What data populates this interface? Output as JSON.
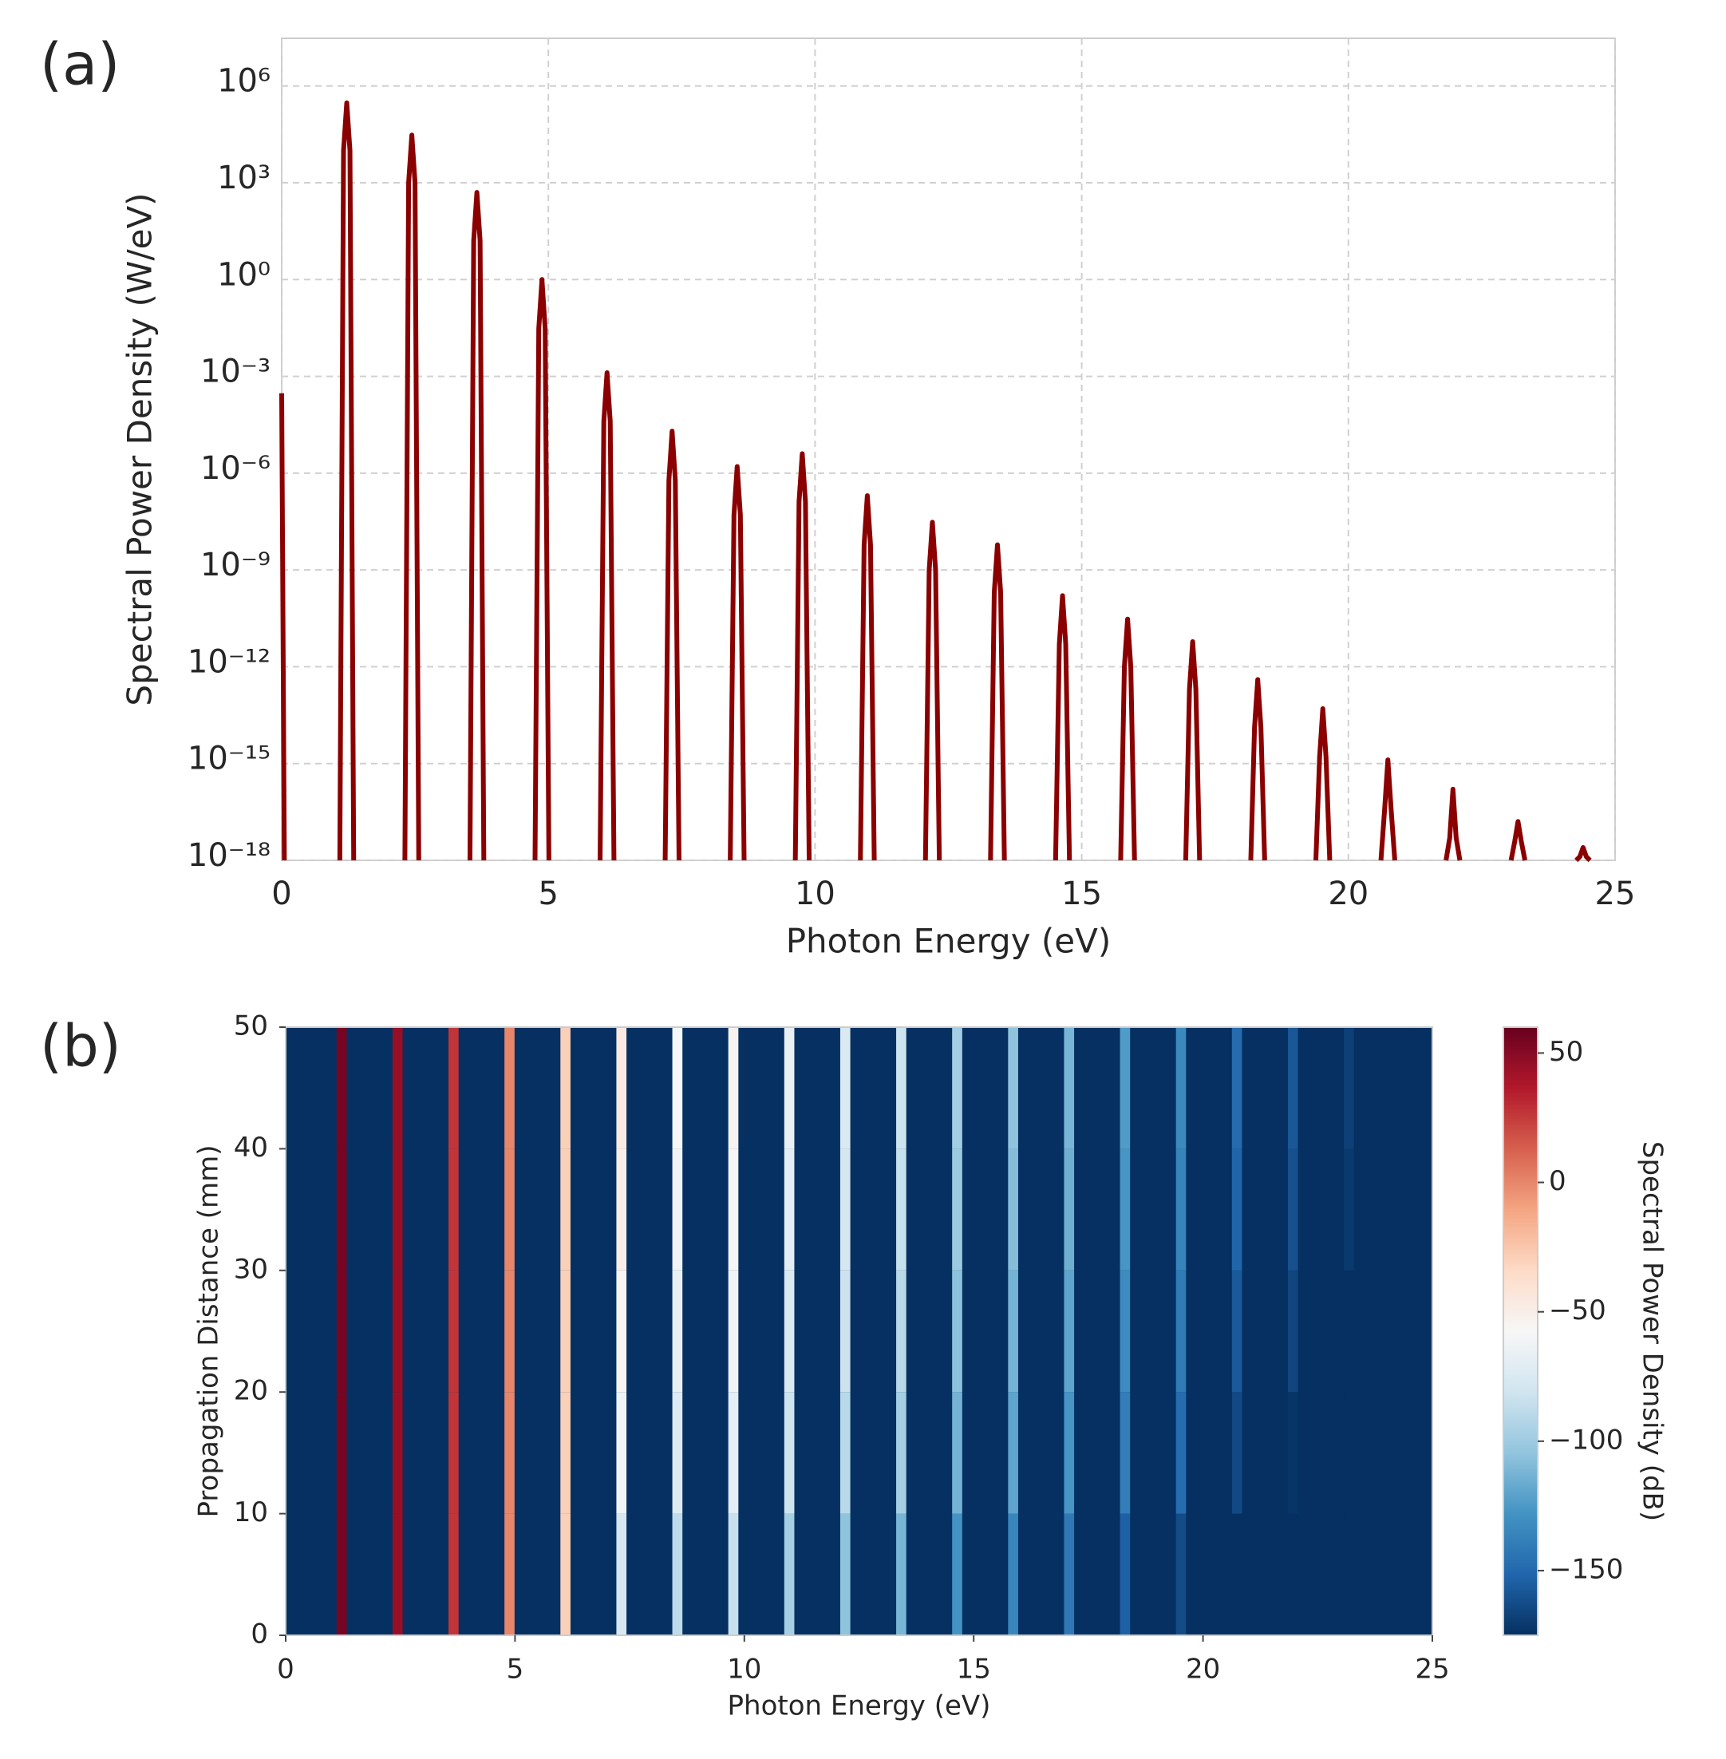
{
  "chart_data": [
    {
      "type": "line",
      "label": "(a)",
      "xlabel": "Photon Energy (eV)",
      "ylabel": "Spectral Power Density (W/eV)",
      "color": "#8b0000",
      "ylog": true,
      "grid": true,
      "xlim": [
        0,
        25
      ],
      "ylim": [
        1e-18,
        30000000.0
      ],
      "xticks": [
        0,
        5,
        10,
        15,
        20,
        25
      ],
      "yticks": [
        {
          "value": 1000000.0,
          "label": "10⁶"
        },
        {
          "value": 1000.0,
          "label": "10³"
        },
        {
          "value": 1,
          "label": "10⁰"
        },
        {
          "value": 0.001,
          "label": "10⁻³"
        },
        {
          "value": 1e-06,
          "label": "10⁻⁶"
        },
        {
          "value": 1e-09,
          "label": "10⁻⁹"
        },
        {
          "value": 1e-12,
          "label": "10⁻¹²"
        },
        {
          "value": 1e-15,
          "label": "10⁻¹⁵"
        },
        {
          "value": 1e-18,
          "label": "10⁻¹⁸"
        }
      ],
      "x": [
        0,
        0.05,
        0.1,
        1.09,
        1.16,
        1.22,
        1.28,
        1.35,
        1.42,
        2.31,
        2.38,
        2.44,
        2.5,
        2.57,
        2.64,
        3.53,
        3.6,
        3.66,
        3.72,
        3.79,
        3.86,
        4.75,
        4.82,
        4.88,
        4.94,
        5.01,
        5.08,
        5.97,
        6.04,
        6.1,
        6.16,
        6.23,
        6.3,
        7.19,
        7.26,
        7.32,
        7.38,
        7.45,
        7.52,
        8.41,
        8.48,
        8.54,
        8.6,
        8.67,
        8.74,
        9.63,
        9.7,
        9.76,
        9.82,
        9.89,
        9.96,
        10.85,
        10.92,
        10.98,
        11.04,
        11.11,
        11.18,
        12.07,
        12.14,
        12.2,
        12.26,
        12.33,
        12.4,
        13.29,
        13.36,
        13.42,
        13.48,
        13.55,
        13.62,
        14.51,
        14.58,
        14.64,
        14.7,
        14.77,
        14.84,
        15.73,
        15.8,
        15.86,
        15.92,
        15.99,
        16.06,
        16.95,
        17.02,
        17.08,
        17.14,
        17.21,
        17.28,
        18.17,
        18.24,
        18.3,
        18.36,
        18.43,
        18.5,
        19.39,
        19.46,
        19.52,
        19.58,
        19.65,
        19.72,
        20.61,
        20.68,
        20.74,
        20.8,
        20.87,
        20.94,
        21.83,
        21.9,
        21.96,
        22.02,
        22.09,
        22.16,
        23.05,
        23.12,
        23.18,
        23.24,
        23.31,
        23.38,
        24.27,
        24.34,
        24.4,
        24.46,
        24.53
      ],
      "values": [
        0.0003,
        1e-18,
        null,
        1e-18,
        10000.0,
        300000.0,
        10000.0,
        1e-18,
        null,
        1e-18,
        1000.0,
        30000.0,
        1000.0,
        1e-18,
        null,
        1e-18,
        16,
        500,
        16,
        1e-18,
        null,
        1e-18,
        0.03,
        1,
        0.03,
        1e-18,
        null,
        1e-18,
        4e-05,
        0.0013,
        4e-05,
        1e-18,
        null,
        1e-18,
        6e-07,
        2e-05,
        6e-07,
        1e-18,
        null,
        1e-18,
        5e-08,
        1.6e-06,
        5e-08,
        1e-18,
        null,
        1e-18,
        1.3e-07,
        4e-06,
        1.3e-07,
        1e-18,
        null,
        1e-18,
        6e-09,
        2e-07,
        6e-09,
        1e-18,
        null,
        1e-18,
        1e-09,
        3e-08,
        1e-09,
        1e-18,
        null,
        1e-18,
        2e-10,
        6e-09,
        2e-10,
        1e-18,
        null,
        1e-18,
        5e-12,
        1.6e-10,
        5e-12,
        1e-18,
        null,
        1e-18,
        1e-12,
        3e-11,
        1e-12,
        1e-18,
        null,
        1e-18,
        2e-13,
        6e-12,
        2e-13,
        1e-18,
        null,
        1e-18,
        1.3e-14,
        4e-13,
        1.3e-14,
        1e-18,
        null,
        1e-18,
        1.6e-15,
        5e-14,
        1.6e-15,
        1e-18,
        null,
        1e-18,
        4e-17,
        1.3e-15,
        4e-17,
        1e-18,
        null,
        1e-18,
        5e-18,
        1.6e-16,
        5e-18,
        1e-18,
        null,
        1e-18,
        4e-18,
        1.6e-17,
        4e-18,
        1e-18,
        null,
        1e-18,
        1.3e-18,
        2.5e-18,
        1.3e-18,
        1e-18
      ]
    },
    {
      "type": "heatmap",
      "label": "(b)",
      "xlabel": "Photon Energy (eV)",
      "ylabel": "Propagation Distance (mm)",
      "xlim": [
        0,
        25
      ],
      "ylim": [
        0,
        50
      ],
      "xticks": [
        0,
        5,
        10,
        15,
        20,
        25
      ],
      "yticks": [
        0,
        10,
        20,
        30,
        40,
        50
      ],
      "x": [
        1.22,
        2.44,
        3.66,
        4.88,
        6.1,
        7.32,
        8.54,
        9.76,
        10.98,
        12.2,
        13.42,
        14.64,
        15.86,
        17.08,
        18.3,
        19.52,
        20.74,
        21.96,
        23.18,
        24.4
      ],
      "y": [
        0,
        10,
        20,
        30,
        40,
        50
      ],
      "z": [
        [
          55,
          45,
          27,
          0,
          -29,
          -77,
          -88,
          -84,
          -97,
          -105,
          -112,
          -128,
          -135,
          -142,
          -154,
          -163,
          -175,
          -175,
          -175,
          -175
        ],
        [
          55,
          45,
          27,
          0,
          -29,
          -62,
          -73,
          -69,
          -82,
          -90,
          -97,
          -113,
          -120,
          -127,
          -139,
          -148,
          -164,
          -173,
          -175,
          -175
        ],
        [
          55,
          45,
          27,
          0,
          -29,
          -55,
          -66,
          -62,
          -75,
          -83,
          -90,
          -106,
          -113,
          -120,
          -132,
          -141,
          -157,
          -166,
          -175,
          -175
        ],
        [
          55,
          45,
          27,
          0,
          -29,
          -50,
          -61,
          -57,
          -70,
          -78,
          -85,
          -101,
          -108,
          -115,
          -127,
          -136,
          -152,
          -161,
          -171,
          -175
        ],
        [
          55,
          45,
          27,
          0,
          -29,
          -47,
          -58,
          -54,
          -67,
          -75,
          -82,
          -98,
          -105,
          -112,
          -124,
          -133,
          -149,
          -158,
          -168,
          -175
        ]
      ],
      "colormap": [
        "#053061",
        "#2166ac",
        "#4393c3",
        "#92c5de",
        "#d1e5f0",
        "#f7f7f7",
        "#fddbc7",
        "#f4a582",
        "#d6604d",
        "#b2182b",
        "#67001f"
      ],
      "colorbar": {
        "label": "Spectral Power Density (dB)",
        "clim": [
          -175,
          60
        ],
        "ticks": [
          {
            "value": -150,
            "label": "−150"
          },
          {
            "value": -100,
            "label": "−100"
          },
          {
            "value": -50,
            "label": "−50"
          },
          0,
          50
        ]
      }
    }
  ]
}
